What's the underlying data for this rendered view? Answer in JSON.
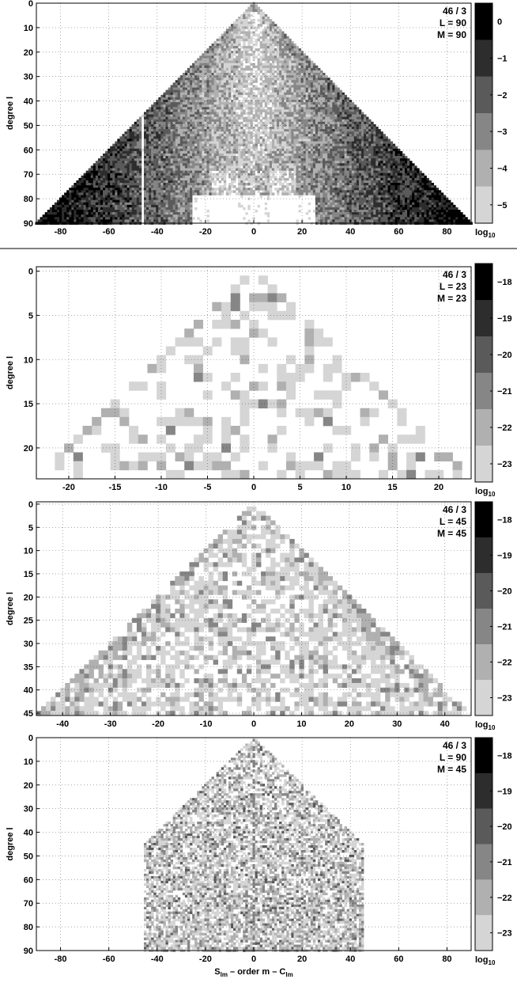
{
  "separator": true,
  "chart_data": [
    {
      "type": "heatmap",
      "annotation": [
        "46 / 3",
        "L = 90",
        "M = 90"
      ],
      "ylabel": "degree l",
      "xlabel": "",
      "L": 90,
      "M": 90,
      "xlim": [
        -90,
        90
      ],
      "ylim": [
        90,
        0
      ],
      "xticks": [
        -80,
        -60,
        -40,
        -20,
        0,
        20,
        40,
        60,
        80
      ],
      "yticks": [
        0,
        10,
        20,
        30,
        40,
        50,
        60,
        70,
        80,
        90
      ],
      "grid": true,
      "colorbar": {
        "levels": [
          0,
          -1,
          -2,
          -3,
          -4,
          -5
        ],
        "label": "log",
        "label_sub": "10",
        "range": [
          -5.5,
          0.5
        ]
      },
      "value_model": "log10 magnitude ranges about -5 (white) to 0 (black); dark near outer edges, light in the high-degree centre region, white notch at degree > 80 between orders -25 and 25"
    },
    {
      "type": "heatmap",
      "annotation": [
        "46 / 3",
        "L = 23",
        "M = 23"
      ],
      "ylabel": "degree l",
      "xlabel": "",
      "L": 23,
      "M": 23,
      "xlim": [
        -23.5,
        23.5
      ],
      "ylim": [
        23.5,
        -0.5
      ],
      "xticks": [
        -20,
        -15,
        -10,
        -5,
        0,
        5,
        10,
        15,
        20
      ],
      "yticks": [
        0,
        5,
        10,
        15,
        20
      ],
      "grid": true,
      "colorbar": {
        "levels": [
          -18,
          -19,
          -20,
          -21,
          -22,
          -23
        ],
        "label": "log",
        "label_sub": "10",
        "range": [
          -23.5,
          -17.5
        ]
      },
      "value_model": "mostly white (below -23) with scattered light gray cells around -22 and a few darker cells"
    },
    {
      "type": "heatmap",
      "annotation": [
        "46 / 3",
        "L = 45",
        "M = 45"
      ],
      "ylabel": "degree l",
      "xlabel": "",
      "L": 45,
      "M": 45,
      "xlim": [
        -45.5,
        45.5
      ],
      "ylim": [
        45.5,
        -0.5
      ],
      "xticks": [
        -40,
        -30,
        -20,
        -10,
        0,
        10,
        20,
        30,
        40
      ],
      "yticks": [
        0,
        5,
        10,
        15,
        20,
        25,
        30,
        35,
        40,
        45
      ],
      "grid": true,
      "colorbar": {
        "levels": [
          -18,
          -19,
          -20,
          -21,
          -22,
          -23
        ],
        "label": "log",
        "label_sub": "10",
        "range": [
          -23.5,
          -17.5
        ]
      },
      "value_model": "mixed white and light gray (-22/-23), darker gray toward the outer diagonal edges"
    },
    {
      "type": "heatmap",
      "annotation": [
        "46 / 3",
        "L = 90",
        "M = 45"
      ],
      "ylabel": "degree l",
      "xlabel": "S_lm – order m – C_lm",
      "xlabel_parts": [
        "S",
        "lm",
        " – order m – C",
        "lm"
      ],
      "L": 90,
      "M": 45,
      "xlim": [
        -90,
        90
      ],
      "ylim": [
        90,
        0
      ],
      "xticks": [
        -80,
        -60,
        -40,
        -20,
        0,
        20,
        40,
        60,
        80
      ],
      "yticks": [
        0,
        10,
        20,
        30,
        40,
        50,
        60,
        70,
        80,
        90
      ],
      "grid": true,
      "colorbar": {
        "levels": [
          -18,
          -19,
          -20,
          -21,
          -22,
          -23
        ],
        "label": "log",
        "label_sub": "10",
        "range": [
          -23.5,
          -17.5
        ]
      },
      "value_model": "triangle to degree 45 then truncated at |order| = 45 below; speckled white/gray with darker values toward higher degrees"
    }
  ]
}
